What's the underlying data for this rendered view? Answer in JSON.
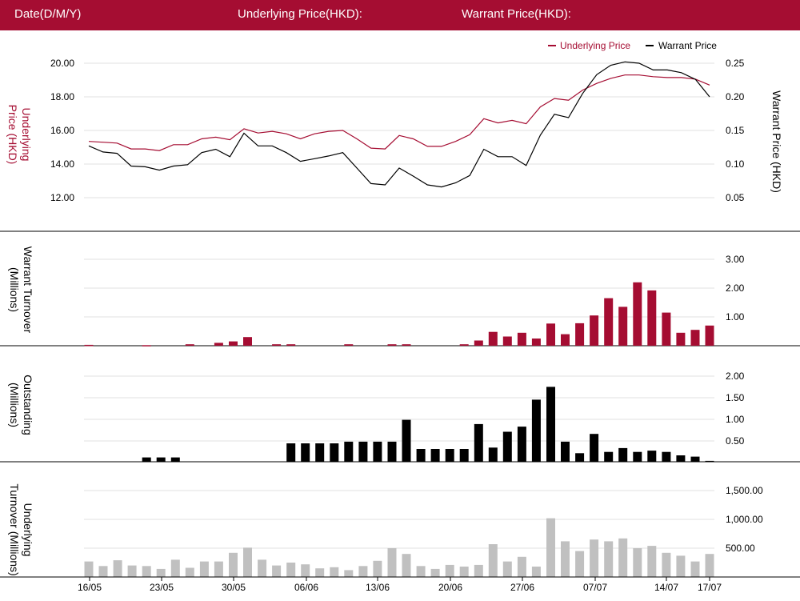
{
  "header": {
    "date_label": "Date(D/M/Y)",
    "underlying_label": "Underlying Price(HKD):",
    "warrant_label": "Warrant Price(HKD):"
  },
  "colors": {
    "brand": "#a50d32",
    "underlying": "#a50d32",
    "warrant": "#000000",
    "grid": "#e2e2e2",
    "underlying_turnover": "#c0c0c0"
  },
  "chart_data": [
    {
      "type": "line",
      "legend": [
        "Underlying Price",
        "Warrant Price"
      ],
      "legend_position": "top-right",
      "ylabel": "Underlying Price (HKD)",
      "y2label": "Warrant Price (HKD)",
      "y_ticks": [
        "20.00",
        "18.00",
        "16.00",
        "14.00",
        "12.00"
      ],
      "y2_ticks": [
        "0.25",
        "0.20",
        "0.15",
        "0.10",
        "0.05"
      ],
      "ylim": [
        10.0,
        21.0
      ],
      "y2lim": [
        0.025,
        0.262
      ],
      "x_ticks": [
        "16/05",
        "23/05",
        "30/05",
        "06/06",
        "13/06",
        "20/06",
        "27/06",
        "07/07",
        "14/07",
        "17/07"
      ],
      "series": [
        {
          "name": "Underlying Price",
          "axis": "left",
          "values": [
            15.35,
            15.3,
            15.25,
            14.9,
            14.9,
            14.8,
            15.15,
            15.15,
            15.5,
            15.6,
            15.45,
            16.1,
            15.85,
            15.95,
            15.8,
            15.5,
            15.8,
            15.95,
            16.0,
            15.5,
            14.95,
            14.9,
            15.7,
            15.5,
            15.05,
            15.05,
            15.35,
            15.75,
            16.7,
            16.45,
            16.6,
            16.4,
            17.4,
            17.9,
            17.8,
            18.4,
            18.8,
            19.1,
            19.3,
            19.3,
            19.2,
            19.15,
            19.15,
            19.05,
            18.7
          ]
        },
        {
          "name": "Warrant Price",
          "axis": "right",
          "values": [
            0.127,
            0.118,
            0.116,
            0.097,
            0.096,
            0.091,
            0.097,
            0.099,
            0.117,
            0.122,
            0.111,
            0.146,
            0.127,
            0.127,
            0.117,
            0.104,
            0.108,
            0.112,
            0.117,
            0.094,
            0.071,
            0.069,
            0.094,
            0.082,
            0.069,
            0.066,
            0.072,
            0.083,
            0.122,
            0.111,
            0.111,
            0.098,
            0.143,
            0.174,
            0.169,
            0.205,
            0.233,
            0.247,
            0.252,
            0.25,
            0.24,
            0.24,
            0.236,
            0.226,
            0.2
          ]
        }
      ]
    },
    {
      "type": "bar",
      "ylabel": "Warrant  Turnover (Millions)",
      "y_ticks": [
        "3.00",
        "2.00",
        "1.00"
      ],
      "ylim": [
        0,
        3.0
      ],
      "values": [
        0.03,
        0,
        0,
        0,
        0.02,
        0,
        0,
        0.05,
        0,
        0.1,
        0.15,
        0.3,
        0,
        0.05,
        0.05,
        0,
        0,
        0,
        0.05,
        0,
        0,
        0.05,
        0.05,
        0,
        0,
        0,
        0.05,
        0.18,
        0.48,
        0.32,
        0.45,
        0.25,
        0.77,
        0.4,
        0.78,
        1.05,
        1.65,
        1.35,
        2.2,
        1.92,
        1.15,
        0.45,
        0.55,
        0.7
      ]
    },
    {
      "type": "bar",
      "ylabel": "Outstanding (Millions)",
      "y_ticks": [
        "2.00",
        "1.50",
        "1.00",
        "0.50"
      ],
      "ylim": [
        0,
        2.0
      ],
      "values": [
        0,
        0,
        0,
        0,
        0.1,
        0.1,
        0.1,
        0,
        0,
        0,
        0,
        0,
        0,
        0,
        0.43,
        0.43,
        0.43,
        0.43,
        0.47,
        0.47,
        0.47,
        0.47,
        0.98,
        0.3,
        0.3,
        0.3,
        0.3,
        0.88,
        0.33,
        0.7,
        0.82,
        1.45,
        1.75,
        0.47,
        0.2,
        0.65,
        0.23,
        0.32,
        0.23,
        0.26,
        0.23,
        0.15,
        0.12,
        0.02
      ]
    },
    {
      "type": "bar",
      "ylabel": "Underlying Turnover (Millions)",
      "y_ticks": [
        "1,500.00",
        "1,000.00",
        "500.00"
      ],
      "ylim": [
        0,
        1500
      ],
      "values": [
        270,
        190,
        290,
        200,
        190,
        140,
        300,
        160,
        270,
        270,
        420,
        510,
        300,
        200,
        250,
        220,
        150,
        170,
        120,
        190,
        280,
        500,
        400,
        190,
        140,
        210,
        180,
        210,
        570,
        270,
        350,
        180,
        1020,
        620,
        450,
        650,
        620,
        670,
        500,
        540,
        420,
        370,
        270,
        400
      ]
    }
  ]
}
